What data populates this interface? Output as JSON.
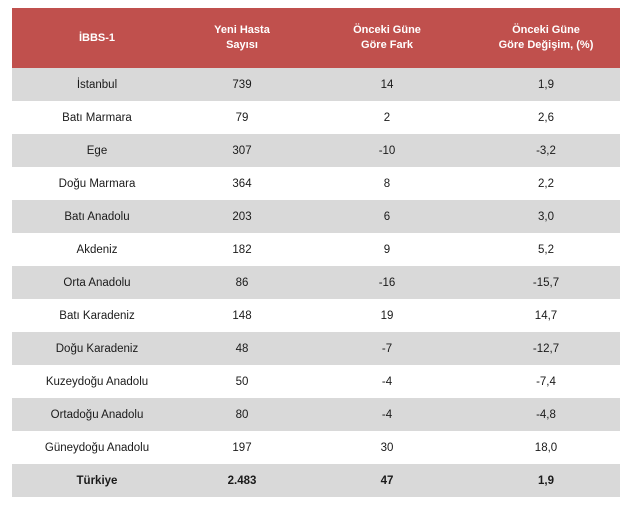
{
  "colors": {
    "header_bg": "#C0504D",
    "header_text": "#FFFFFF",
    "alt_row_bg": "#D9D9D9",
    "row_bg": "#FFFFFF",
    "body_text": "#1A1A1A",
    "page_bg": "#FFFFFF"
  },
  "table": {
    "headers": [
      {
        "id": "region",
        "lines": [
          "İBBS-1"
        ]
      },
      {
        "id": "new_patients",
        "lines": [
          "Yeni Hasta",
          "Sayısı"
        ]
      },
      {
        "id": "diff",
        "lines": [
          "Önceki Güne",
          "Göre Fark"
        ]
      },
      {
        "id": "pct_change",
        "lines": [
          "Önceki Güne",
          "Göre Değişim, (%)"
        ]
      }
    ],
    "rows": [
      {
        "cells": [
          "İstanbul",
          "739",
          "14",
          "1,9"
        ],
        "shaded": true,
        "bold": false
      },
      {
        "cells": [
          "Batı Marmara",
          "79",
          "2",
          "2,6"
        ],
        "shaded": false,
        "bold": false
      },
      {
        "cells": [
          "Ege",
          "307",
          "-10",
          "-3,2"
        ],
        "shaded": true,
        "bold": false
      },
      {
        "cells": [
          "Doğu Marmara",
          "364",
          "8",
          "2,2"
        ],
        "shaded": false,
        "bold": false
      },
      {
        "cells": [
          "Batı Anadolu",
          "203",
          "6",
          "3,0"
        ],
        "shaded": true,
        "bold": false
      },
      {
        "cells": [
          "Akdeniz",
          "182",
          "9",
          "5,2"
        ],
        "shaded": false,
        "bold": false
      },
      {
        "cells": [
          "Orta Anadolu",
          "86",
          "-16",
          "-15,7"
        ],
        "shaded": true,
        "bold": false
      },
      {
        "cells": [
          "Batı Karadeniz",
          "148",
          "19",
          "14,7"
        ],
        "shaded": false,
        "bold": false
      },
      {
        "cells": [
          "Doğu Karadeniz",
          "48",
          "-7",
          "-12,7"
        ],
        "shaded": true,
        "bold": false
      },
      {
        "cells": [
          "Kuzeydoğu Anadolu",
          "50",
          "-4",
          "-7,4"
        ],
        "shaded": false,
        "bold": false
      },
      {
        "cells": [
          "Ortadoğu Anadolu",
          "80",
          "-4",
          "-4,8"
        ],
        "shaded": true,
        "bold": false
      },
      {
        "cells": [
          "Güneydoğu Anadolu",
          "197",
          "30",
          "18,0"
        ],
        "shaded": false,
        "bold": false
      },
      {
        "cells": [
          "Türkiye",
          "2.483",
          "47",
          "1,9"
        ],
        "shaded": true,
        "bold": true
      }
    ]
  }
}
